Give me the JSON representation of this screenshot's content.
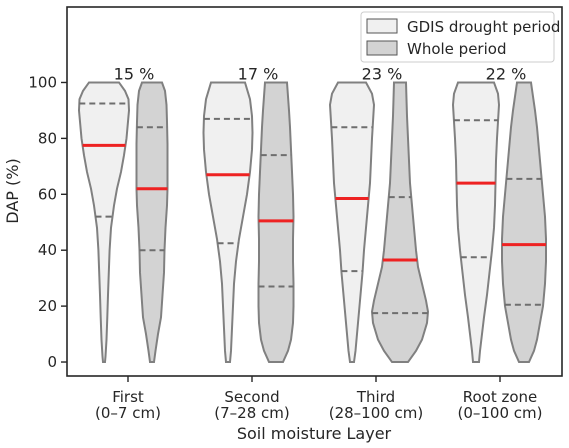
{
  "chart_data": {
    "type": "violin",
    "xlabel": "Soil moisture Layer",
    "ylabel": "DAP (%)",
    "ylim": [
      -5,
      127
    ],
    "yticks": [
      0,
      20,
      40,
      60,
      80,
      100
    ],
    "categories": [
      {
        "line1": "First",
        "line2": "(0–7 cm)"
      },
      {
        "line1": "Second",
        "line2": "(7–28 cm)"
      },
      {
        "line1": "Third",
        "line2": "(28–100 cm)"
      },
      {
        "line1": "Root zone",
        "line2": "(0–100 cm)"
      }
    ],
    "percent_labels": [
      "15 %",
      "17 %",
      "23 %",
      "22 %"
    ],
    "series": [
      {
        "name": "GDIS drought period",
        "color": "#f0f0f0",
        "violins": [
          {
            "median": 77.5,
            "q1": 52,
            "q3": 92.5,
            "profile": [
              [
                0,
                1
              ],
              [
                2,
                1.5
              ],
              [
                8,
                2.5
              ],
              [
                16,
                3.3
              ],
              [
                24,
                4
              ],
              [
                32,
                4.8
              ],
              [
                40,
                5.6
              ],
              [
                48,
                7
              ],
              [
                56,
                10
              ],
              [
                62,
                13
              ],
              [
                68,
                17
              ],
              [
                74,
                20
              ],
              [
                80,
                22.5
              ],
              [
                86,
                24
              ],
              [
                90,
                25
              ],
              [
                94,
                24.5
              ],
              [
                97,
                21
              ],
              [
                100,
                15
              ]
            ]
          },
          {
            "median": 67,
            "q1": 42.5,
            "q3": 87,
            "profile": [
              [
                0,
                2
              ],
              [
                4,
                3
              ],
              [
                12,
                4
              ],
              [
                20,
                5
              ],
              [
                28,
                6
              ],
              [
                36,
                8
              ],
              [
                44,
                11
              ],
              [
                52,
                15
              ],
              [
                60,
                19
              ],
              [
                68,
                22
              ],
              [
                76,
                24
              ],
              [
                82,
                24.5
              ],
              [
                88,
                24
              ],
              [
                94,
                22
              ],
              [
                100,
                17
              ]
            ]
          },
          {
            "median": 58.5,
            "q1": 32.5,
            "q3": 84,
            "profile": [
              [
                0,
                2
              ],
              [
                4,
                3.5
              ],
              [
                10,
                5
              ],
              [
                18,
                7
              ],
              [
                26,
                9
              ],
              [
                32,
                10.5
              ],
              [
                40,
                12
              ],
              [
                48,
                14
              ],
              [
                56,
                16
              ],
              [
                64,
                18
              ],
              [
                72,
                19
              ],
              [
                80,
                20
              ],
              [
                86,
                21
              ],
              [
                92,
                22
              ],
              [
                96,
                20
              ],
              [
                100,
                14
              ]
            ]
          },
          {
            "median": 64,
            "q1": 37.5,
            "q3": 86.5,
            "profile": [
              [
                0,
                3
              ],
              [
                4,
                4
              ],
              [
                10,
                6
              ],
              [
                16,
                8
              ],
              [
                24,
                11
              ],
              [
                32,
                13.5
              ],
              [
                40,
                16
              ],
              [
                48,
                18
              ],
              [
                56,
                19
              ],
              [
                64,
                19.5
              ],
              [
                72,
                20
              ],
              [
                80,
                21
              ],
              [
                86,
                22
              ],
              [
                92,
                23
              ],
              [
                96,
                22
              ],
              [
                100,
                18
              ]
            ]
          }
        ]
      },
      {
        "name": "Whole period",
        "color": "#d3d3d3",
        "violins": [
          {
            "median": 62,
            "q1": 40,
            "q3": 84,
            "profile": [
              [
                0,
                2
              ],
              [
                4,
                3.5
              ],
              [
                10,
                6
              ],
              [
                16,
                9
              ],
              [
                24,
                10.5
              ],
              [
                32,
                12
              ],
              [
                40,
                12.5
              ],
              [
                48,
                13.5
              ],
              [
                56,
                15
              ],
              [
                62,
                15.5
              ],
              [
                70,
                15.5
              ],
              [
                78,
                15.5
              ],
              [
                86,
                15
              ],
              [
                92,
                14.5
              ],
              [
                97,
                13
              ],
              [
                100,
                10
              ]
            ]
          },
          {
            "median": 50.5,
            "q1": 27,
            "q3": 74,
            "profile": [
              [
                0,
                7
              ],
              [
                4,
                12
              ],
              [
                8,
                15
              ],
              [
                14,
                17
              ],
              [
                20,
                17.5
              ],
              [
                28,
                17.5
              ],
              [
                36,
                17
              ],
              [
                44,
                17
              ],
              [
                52,
                17.5
              ],
              [
                60,
                17
              ],
              [
                68,
                16
              ],
              [
                76,
                15
              ],
              [
                84,
                14
              ],
              [
                90,
                13
              ],
              [
                95,
                12
              ],
              [
                100,
                11
              ]
            ]
          },
          {
            "median": 36.5,
            "q1": 17.5,
            "q3": 59,
            "profile": [
              [
                0,
                8
              ],
              [
                4,
                16
              ],
              [
                8,
                22
              ],
              [
                14,
                27
              ],
              [
                18,
                28
              ],
              [
                22,
                26
              ],
              [
                28,
                22
              ],
              [
                34,
                18
              ],
              [
                40,
                16
              ],
              [
                48,
                14
              ],
              [
                56,
                12
              ],
              [
                64,
                10
              ],
              [
                72,
                9
              ],
              [
                80,
                8
              ],
              [
                88,
                7
              ],
              [
                94,
                6.5
              ],
              [
                100,
                6
              ]
            ]
          },
          {
            "median": 42,
            "q1": 20.5,
            "q3": 65.5,
            "profile": [
              [
                0,
                5
              ],
              [
                4,
                10
              ],
              [
                8,
                13
              ],
              [
                14,
                16
              ],
              [
                20,
                19
              ],
              [
                28,
                21
              ],
              [
                36,
                22
              ],
              [
                44,
                22
              ],
              [
                52,
                21
              ],
              [
                60,
                19
              ],
              [
                68,
                17
              ],
              [
                76,
                15
              ],
              [
                84,
                13
              ],
              [
                90,
                11
              ],
              [
                95,
                9
              ],
              [
                100,
                7
              ]
            ]
          }
        ]
      }
    ],
    "legend": {
      "position": "top-right"
    }
  }
}
